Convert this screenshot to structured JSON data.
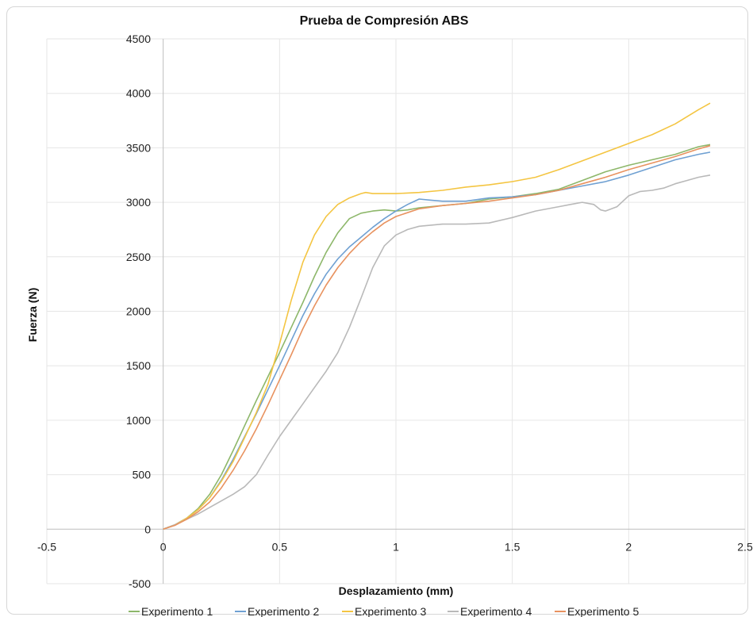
{
  "chart_data": {
    "type": "line",
    "title": "Prueba de Compresión ABS",
    "xlabel": "Desplazamiento (mm)",
    "ylabel": "Fuerza (N)",
    "xlim": [
      -0.5,
      2.5
    ],
    "ylim": [
      -500,
      4500
    ],
    "x_ticks": [
      -0.5,
      0,
      0.5,
      1,
      1.5,
      2,
      2.5
    ],
    "y_ticks": [
      -500,
      0,
      500,
      1000,
      1500,
      2000,
      2500,
      3000,
      3500,
      4000,
      4500
    ],
    "grid": true,
    "legend_position": "bottom",
    "series": [
      {
        "name": "Experimento 1",
        "color": "#8db76a",
        "points": [
          [
            0,
            0
          ],
          [
            0.05,
            40
          ],
          [
            0.1,
            100
          ],
          [
            0.15,
            190
          ],
          [
            0.2,
            320
          ],
          [
            0.25,
            500
          ],
          [
            0.3,
            720
          ],
          [
            0.35,
            950
          ],
          [
            0.4,
            1180
          ],
          [
            0.45,
            1400
          ],
          [
            0.5,
            1620
          ],
          [
            0.55,
            1850
          ],
          [
            0.6,
            2080
          ],
          [
            0.65,
            2320
          ],
          [
            0.7,
            2540
          ],
          [
            0.75,
            2720
          ],
          [
            0.8,
            2850
          ],
          [
            0.85,
            2900
          ],
          [
            0.9,
            2920
          ],
          [
            0.95,
            2930
          ],
          [
            1.0,
            2920
          ],
          [
            1.05,
            2930
          ],
          [
            1.1,
            2950
          ],
          [
            1.2,
            2970
          ],
          [
            1.3,
            2990
          ],
          [
            1.4,
            3030
          ],
          [
            1.5,
            3050
          ],
          [
            1.6,
            3080
          ],
          [
            1.7,
            3120
          ],
          [
            1.8,
            3200
          ],
          [
            1.9,
            3280
          ],
          [
            2.0,
            3340
          ],
          [
            2.1,
            3390
          ],
          [
            2.2,
            3440
          ],
          [
            2.3,
            3510
          ],
          [
            2.35,
            3530
          ]
        ]
      },
      {
        "name": "Experimento 2",
        "color": "#6fa0d2",
        "points": [
          [
            0,
            0
          ],
          [
            0.05,
            40
          ],
          [
            0.1,
            100
          ],
          [
            0.15,
            180
          ],
          [
            0.2,
            290
          ],
          [
            0.25,
            450
          ],
          [
            0.3,
            640
          ],
          [
            0.35,
            850
          ],
          [
            0.4,
            1060
          ],
          [
            0.45,
            1280
          ],
          [
            0.5,
            1500
          ],
          [
            0.55,
            1730
          ],
          [
            0.6,
            1960
          ],
          [
            0.65,
            2160
          ],
          [
            0.7,
            2340
          ],
          [
            0.75,
            2480
          ],
          [
            0.8,
            2590
          ],
          [
            0.85,
            2680
          ],
          [
            0.9,
            2770
          ],
          [
            0.95,
            2850
          ],
          [
            1.0,
            2920
          ],
          [
            1.05,
            2980
          ],
          [
            1.1,
            3030
          ],
          [
            1.15,
            3020
          ],
          [
            1.2,
            3010
          ],
          [
            1.3,
            3010
          ],
          [
            1.4,
            3040
          ],
          [
            1.5,
            3050
          ],
          [
            1.6,
            3070
          ],
          [
            1.7,
            3110
          ],
          [
            1.8,
            3150
          ],
          [
            1.9,
            3190
          ],
          [
            2.0,
            3250
          ],
          [
            2.1,
            3320
          ],
          [
            2.2,
            3390
          ],
          [
            2.3,
            3440
          ],
          [
            2.35,
            3460
          ]
        ]
      },
      {
        "name": "Experimento 3",
        "color": "#f4c542",
        "points": [
          [
            0,
            0
          ],
          [
            0.05,
            40
          ],
          [
            0.1,
            100
          ],
          [
            0.15,
            180
          ],
          [
            0.2,
            290
          ],
          [
            0.25,
            440
          ],
          [
            0.3,
            620
          ],
          [
            0.35,
            840
          ],
          [
            0.4,
            1070
          ],
          [
            0.45,
            1330
          ],
          [
            0.5,
            1700
          ],
          [
            0.55,
            2100
          ],
          [
            0.6,
            2450
          ],
          [
            0.65,
            2700
          ],
          [
            0.7,
            2870
          ],
          [
            0.75,
            2980
          ],
          [
            0.8,
            3040
          ],
          [
            0.85,
            3080
          ],
          [
            0.87,
            3090
          ],
          [
            0.9,
            3080
          ],
          [
            1.0,
            3080
          ],
          [
            1.1,
            3090
          ],
          [
            1.2,
            3110
          ],
          [
            1.3,
            3140
          ],
          [
            1.4,
            3160
          ],
          [
            1.5,
            3190
          ],
          [
            1.6,
            3230
          ],
          [
            1.7,
            3300
          ],
          [
            1.8,
            3380
          ],
          [
            1.9,
            3460
          ],
          [
            2.0,
            3540
          ],
          [
            2.1,
            3620
          ],
          [
            2.2,
            3720
          ],
          [
            2.3,
            3850
          ],
          [
            2.35,
            3910
          ]
        ]
      },
      {
        "name": "Experimento 4",
        "color": "#b9b9b9",
        "points": [
          [
            0,
            0
          ],
          [
            0.05,
            40
          ],
          [
            0.1,
            90
          ],
          [
            0.15,
            140
          ],
          [
            0.2,
            200
          ],
          [
            0.25,
            260
          ],
          [
            0.3,
            320
          ],
          [
            0.35,
            390
          ],
          [
            0.4,
            500
          ],
          [
            0.45,
            680
          ],
          [
            0.5,
            850
          ],
          [
            0.55,
            1000
          ],
          [
            0.6,
            1150
          ],
          [
            0.65,
            1300
          ],
          [
            0.7,
            1450
          ],
          [
            0.75,
            1620
          ],
          [
            0.8,
            1850
          ],
          [
            0.85,
            2120
          ],
          [
            0.9,
            2400
          ],
          [
            0.95,
            2600
          ],
          [
            1.0,
            2700
          ],
          [
            1.05,
            2750
          ],
          [
            1.1,
            2780
          ],
          [
            1.2,
            2800
          ],
          [
            1.3,
            2800
          ],
          [
            1.4,
            2810
          ],
          [
            1.5,
            2860
          ],
          [
            1.6,
            2920
          ],
          [
            1.7,
            2960
          ],
          [
            1.75,
            2980
          ],
          [
            1.8,
            3000
          ],
          [
            1.85,
            2980
          ],
          [
            1.88,
            2930
          ],
          [
            1.9,
            2920
          ],
          [
            1.95,
            2960
          ],
          [
            2.0,
            3060
          ],
          [
            2.05,
            3100
          ],
          [
            2.1,
            3110
          ],
          [
            2.15,
            3130
          ],
          [
            2.2,
            3170
          ],
          [
            2.25,
            3200
          ],
          [
            2.3,
            3230
          ],
          [
            2.35,
            3250
          ]
        ]
      },
      {
        "name": "Experimento 5",
        "color": "#e8925f",
        "points": [
          [
            0,
            0
          ],
          [
            0.05,
            35
          ],
          [
            0.1,
            90
          ],
          [
            0.15,
            160
          ],
          [
            0.2,
            250
          ],
          [
            0.25,
            380
          ],
          [
            0.3,
            540
          ],
          [
            0.35,
            720
          ],
          [
            0.4,
            920
          ],
          [
            0.45,
            1140
          ],
          [
            0.5,
            1370
          ],
          [
            0.55,
            1600
          ],
          [
            0.6,
            1840
          ],
          [
            0.65,
            2050
          ],
          [
            0.7,
            2240
          ],
          [
            0.75,
            2400
          ],
          [
            0.8,
            2530
          ],
          [
            0.85,
            2640
          ],
          [
            0.9,
            2730
          ],
          [
            0.95,
            2810
          ],
          [
            1.0,
            2870
          ],
          [
            1.1,
            2940
          ],
          [
            1.2,
            2970
          ],
          [
            1.3,
            2990
          ],
          [
            1.4,
            3010
          ],
          [
            1.5,
            3040
          ],
          [
            1.6,
            3070
          ],
          [
            1.7,
            3110
          ],
          [
            1.8,
            3170
          ],
          [
            1.9,
            3230
          ],
          [
            2.0,
            3300
          ],
          [
            2.1,
            3360
          ],
          [
            2.2,
            3420
          ],
          [
            2.3,
            3490
          ],
          [
            2.35,
            3520
          ]
        ]
      }
    ]
  }
}
